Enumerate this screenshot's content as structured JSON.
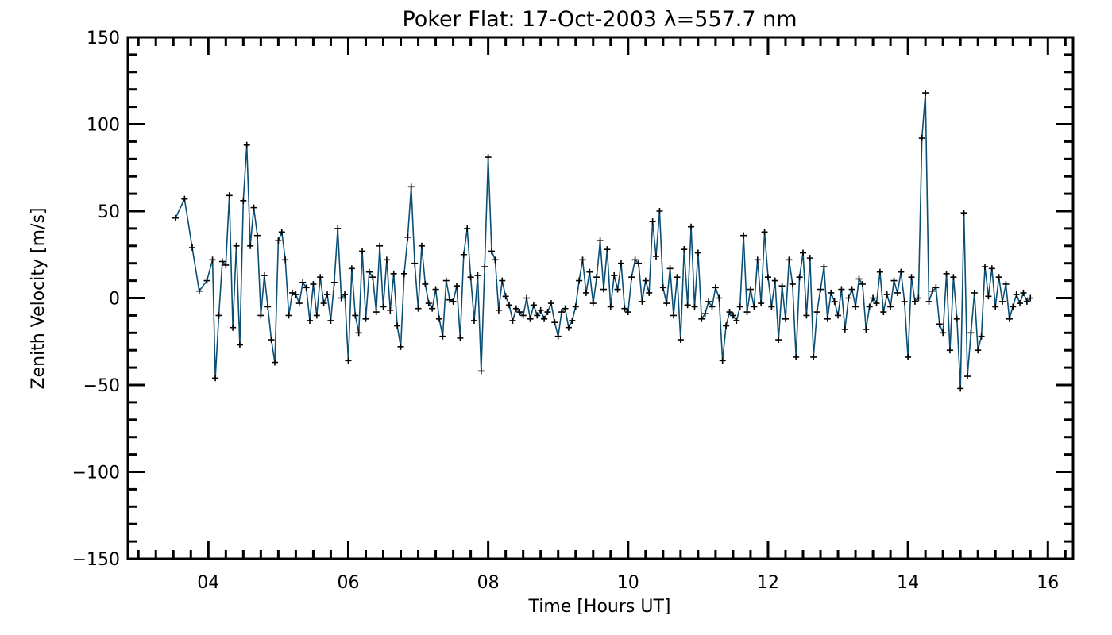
{
  "chart_data": {
    "type": "line",
    "title": "Poker Flat: 17-Oct-2003 λ=557.7 nm",
    "xlabel": "Time [Hours UT]",
    "ylabel": "Zenith Velocity [m/s]",
    "xlim": [
      2.85,
      16.36
    ],
    "ylim": [
      -150,
      150
    ],
    "xticks": [
      4,
      6,
      8,
      10,
      12,
      14,
      16
    ],
    "xtick_labels": [
      "04",
      "06",
      "08",
      "10",
      "12",
      "14",
      "16"
    ],
    "xminor_step": 0.25,
    "yticks": [
      -150,
      -100,
      -50,
      0,
      50,
      100,
      150
    ],
    "ytick_labels": [
      "−150",
      "−100",
      "−50",
      "0",
      "50",
      "100",
      "150"
    ],
    "yminor_step": 10,
    "grid": false,
    "line_color": "#0b4f75",
    "marker": "plus",
    "series": [
      {
        "name": "zenith velocity",
        "x": [
          3.53,
          3.66,
          3.77,
          3.87,
          3.98,
          4.06,
          4.1,
          4.15,
          4.2,
          4.25,
          4.3,
          4.35,
          4.4,
          4.45,
          4.5,
          4.55,
          4.6,
          4.65,
          4.7,
          4.75,
          4.8,
          4.85,
          4.9,
          4.95,
          5.0,
          5.05,
          5.1,
          5.15,
          5.2,
          5.25,
          5.3,
          5.35,
          5.4,
          5.45,
          5.5,
          5.55,
          5.6,
          5.65,
          5.7,
          5.75,
          5.8,
          5.85,
          5.9,
          5.95,
          6.0,
          6.05,
          6.1,
          6.15,
          6.2,
          6.25,
          6.3,
          6.35,
          6.4,
          6.45,
          6.5,
          6.55,
          6.6,
          6.65,
          6.7,
          6.75,
          6.8,
          6.85,
          6.9,
          6.95,
          7.0,
          7.05,
          7.1,
          7.15,
          7.2,
          7.25,
          7.3,
          7.35,
          7.4,
          7.45,
          7.5,
          7.55,
          7.6,
          7.65,
          7.7,
          7.75,
          7.8,
          7.85,
          7.9,
          7.95,
          8.0,
          8.05,
          8.1,
          8.15,
          8.2,
          8.25,
          8.3,
          8.35,
          8.4,
          8.45,
          8.5,
          8.55,
          8.6,
          8.65,
          8.7,
          8.75,
          8.8,
          8.85,
          8.9,
          8.95,
          9.0,
          9.05,
          9.1,
          9.15,
          9.2,
          9.25,
          9.3,
          9.35,
          9.4,
          9.45,
          9.5,
          9.55,
          9.6,
          9.65,
          9.7,
          9.75,
          9.8,
          9.85,
          9.9,
          9.95,
          10.0,
          10.05,
          10.1,
          10.15,
          10.2,
          10.25,
          10.3,
          10.35,
          10.4,
          10.45,
          10.5,
          10.55,
          10.6,
          10.65,
          10.7,
          10.75,
          10.8,
          10.85,
          10.9,
          10.95,
          11.0,
          11.05,
          11.1,
          11.15,
          11.2,
          11.25,
          11.3,
          11.35,
          11.4,
          11.45,
          11.5,
          11.55,
          11.6,
          11.65,
          11.7,
          11.75,
          11.8,
          11.85,
          11.9,
          11.95,
          12.0,
          12.05,
          12.1,
          12.15,
          12.2,
          12.25,
          12.3,
          12.35,
          12.4,
          12.45,
          12.5,
          12.55,
          12.6,
          12.65,
          12.7,
          12.75,
          12.8,
          12.85,
          12.9,
          12.95,
          13.0,
          13.05,
          13.1,
          13.15,
          13.2,
          13.25,
          13.3,
          13.35,
          13.4,
          13.45,
          13.5,
          13.55,
          13.6,
          13.65,
          13.7,
          13.75,
          13.8,
          13.85,
          13.9,
          13.95,
          14.0,
          14.05,
          14.1,
          14.15,
          14.2,
          14.25,
          14.3,
          14.35,
          14.4,
          14.45,
          14.5,
          14.55,
          14.6,
          14.65,
          14.7,
          14.75,
          14.8,
          14.85,
          14.9,
          14.95,
          15.0,
          15.05,
          15.1,
          15.15,
          15.2,
          15.25,
          15.3,
          15.35,
          15.4,
          15.45,
          15.5,
          15.55,
          15.6,
          15.65,
          15.7,
          15.75
        ],
        "y": [
          46,
          57,
          29,
          4,
          10,
          22,
          -46,
          -10,
          21,
          19,
          59,
          -17,
          30,
          -27,
          56,
          88,
          30,
          52,
          36,
          -10,
          13,
          -5,
          -24,
          -37,
          33,
          38,
          22,
          -10,
          3,
          2,
          -3,
          9,
          6,
          -13,
          8,
          -10,
          12,
          -3,
          2,
          -13,
          9,
          40,
          0,
          2,
          -36,
          17,
          -10,
          -20,
          27,
          -12,
          15,
          12,
          -8,
          30,
          -5,
          22,
          -7,
          14,
          -16,
          -28,
          14,
          35,
          64,
          20,
          -6,
          30,
          8,
          -3,
          -6,
          5,
          -12,
          -22,
          10,
          -1,
          -2,
          7,
          -23,
          25,
          40,
          12,
          -13,
          13,
          -42,
          18,
          81,
          27,
          22,
          -7,
          10,
          1,
          -4,
          -13,
          -6,
          -8,
          -10,
          0,
          -12,
          -4,
          -10,
          -7,
          -12,
          -8,
          -3,
          -14,
          -22,
          -8,
          -6,
          -17,
          -13,
          -5,
          10,
          22,
          3,
          15,
          -3,
          12,
          33,
          5,
          28,
          -5,
          13,
          5,
          20,
          -6,
          -8,
          12,
          22,
          20,
          -2,
          10,
          3,
          44,
          24,
          50,
          6,
          -3,
          17,
          -10,
          12,
          -24,
          28,
          -4,
          41,
          -5,
          26,
          -12,
          -9,
          -2,
          -5,
          6,
          0,
          -36,
          -16,
          -8,
          -10,
          -13,
          -5,
          36,
          -8,
          5,
          -5,
          22,
          -3,
          38,
          12,
          -5,
          10,
          -24,
          7,
          -12,
          22,
          8,
          -34,
          12,
          26,
          -10,
          23,
          -34,
          -8,
          5,
          18,
          -12,
          3,
          -2,
          -10,
          5,
          -18,
          0,
          5,
          -5,
          11,
          8,
          -18,
          -5,
          0,
          -3,
          15,
          -8,
          2,
          -5,
          10,
          3,
          15,
          -2,
          -34,
          12,
          -2,
          0,
          92,
          118,
          -2,
          4,
          6,
          -15,
          -20,
          14,
          -30,
          12,
          -12,
          -52,
          49,
          -45,
          -20,
          3,
          -30,
          -22,
          18,
          1,
          17,
          -5,
          12,
          -2,
          8,
          -12,
          -5,
          2,
          -3,
          3,
          -2,
          0
        ]
      }
    ]
  }
}
